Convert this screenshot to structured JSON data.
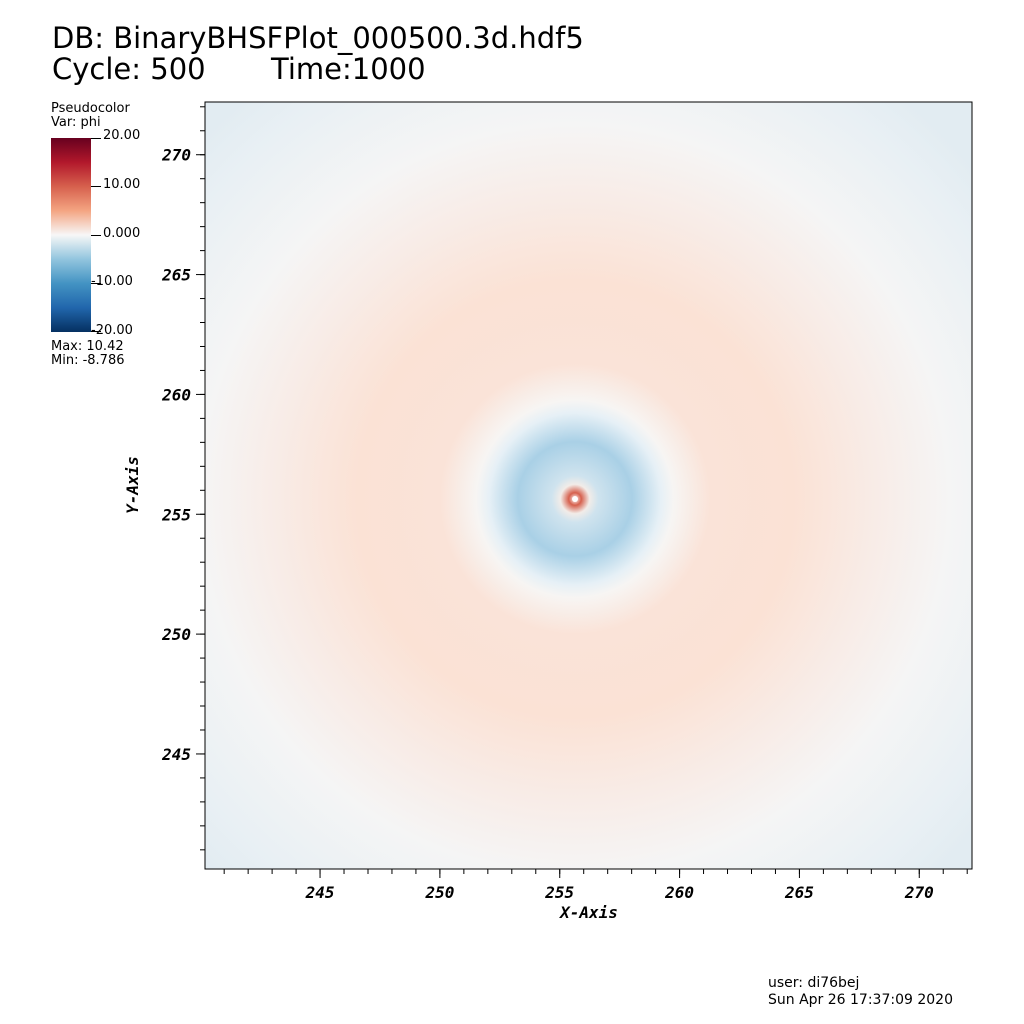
{
  "header": {
    "db_title": "DB: BinaryBHSFPlot_000500.3d.hdf5",
    "cycle": "Cycle: 500",
    "time": "Time:1000"
  },
  "legend": {
    "title": "Pseudocolor",
    "var": "Var: phi",
    "tick_labels": [
      "20.00",
      "10.00",
      "0.000",
      "-10.00",
      "-20.00"
    ],
    "max": "Max:  10.42",
    "min": "Min: -8.786",
    "colors": [
      "#67001f",
      "#b2182b",
      "#d6604d",
      "#f4a582",
      "#f7f7f7",
      "#92c5de",
      "#4393c3",
      "#2166ac",
      "#053061"
    ]
  },
  "footer": {
    "user": "user: di76bej",
    "date": "Sun Apr 26 17:37:09 2020"
  },
  "chart_data": {
    "type": "heatmap",
    "title": "DB: BinaryBHSFPlot_000500.3d.hdf5",
    "variable": "phi",
    "xlabel": "X-Axis",
    "ylabel": "Y-Axis",
    "xlim": [
      240.2,
      272.2
    ],
    "ylim": [
      240.2,
      272.2
    ],
    "x_ticks": [
      245,
      250,
      255,
      260,
      265,
      270
    ],
    "y_ticks": [
      245,
      250,
      255,
      260,
      265,
      270
    ],
    "color_range": [
      -20,
      20
    ],
    "data_max": 10.42,
    "data_min": -8.786,
    "features": [
      {
        "name": "center",
        "x": 255.5,
        "y": 255.6
      },
      {
        "name": "inner-positive-peak-radius",
        "value": 0.4
      },
      {
        "name": "negative-well-outer-radius",
        "value": 3.8
      },
      {
        "name": "outer-positive-ring-radius",
        "value": 10
      }
    ]
  }
}
